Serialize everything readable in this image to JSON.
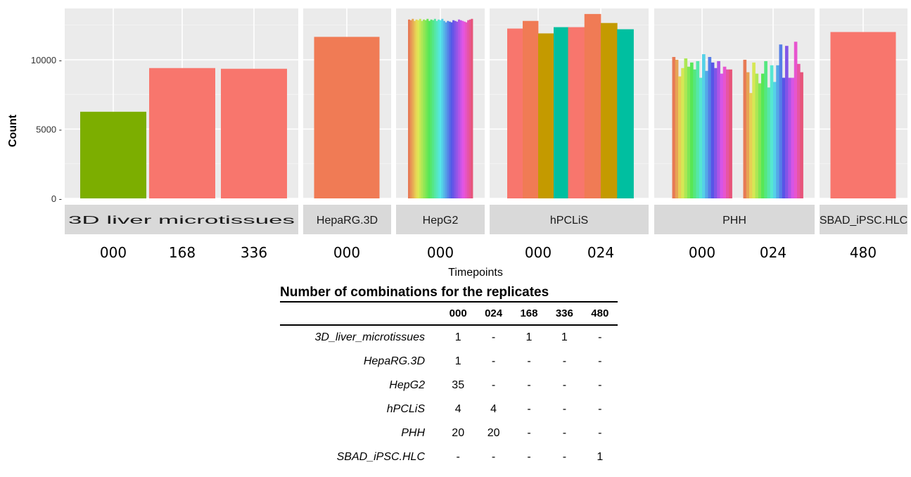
{
  "chart_data": {
    "type": "bar",
    "ylabel": "Count",
    "xlabel": "Timepoints",
    "ylim": [
      0,
      13700
    ],
    "yticks": [
      0,
      5000,
      10000
    ],
    "ytick_labels": [
      "0 -",
      "5000 -",
      "10000 -"
    ],
    "grid": true,
    "panels": [
      {
        "name": "3D liver microtissues",
        "groups": [
          {
            "label": "000",
            "values": [
              6250
            ],
            "colors": [
              "#7cae00"
            ]
          },
          {
            "label": "168",
            "values": [
              9400
            ],
            "colors": [
              "#f8766d"
            ]
          },
          {
            "label": "336",
            "values": [
              9350
            ],
            "colors": [
              "#f8766d"
            ]
          }
        ]
      },
      {
        "name": "HepaRG.3D",
        "groups": [
          {
            "label": "000",
            "values": [
              11650
            ],
            "colors": [
              "#f07b55"
            ]
          }
        ]
      },
      {
        "name": "HepG2",
        "groups": [
          {
            "label": "000",
            "values": [
              12900,
              12850,
              12950,
              12800,
              12900,
              12850,
              12950,
              12800,
              12900,
              12850,
              12950,
              12800,
              12900,
              12850,
              12950,
              12800,
              12900,
              12850,
              12950,
              12800,
              12700,
              12800,
              12750,
              12700,
              12850,
              12800,
              12750,
              12900,
              12850,
              12800,
              12750,
              12700,
              12850,
              12900,
              12950
            ],
            "colors": [
              "rainbow"
            ]
          }
        ]
      },
      {
        "name": "hPCLiS",
        "groups": [
          {
            "label": "000",
            "values": [
              12250,
              12800,
              11900,
              12350
            ],
            "colors": [
              "#f8766d",
              "#f07b55",
              "#c49a00",
              "#00bfa0"
            ]
          },
          {
            "label": "024",
            "values": [
              12350,
              13300,
              12650,
              12200
            ],
            "colors": [
              "#f8766d",
              "#f07b55",
              "#c49a00",
              "#00bfa0"
            ]
          }
        ]
      },
      {
        "name": "PHH",
        "groups": [
          {
            "label": "000",
            "values": [
              10200,
              10000,
              8800,
              9400,
              10100,
              9500,
              9800,
              9300,
              9900,
              8700,
              10400,
              9200,
              10200,
              9800,
              9400,
              9900,
              9000,
              9500,
              9300,
              9300
            ],
            "colors": [
              "rainbow"
            ]
          },
          {
            "label": "024",
            "values": [
              10000,
              9100,
              7600,
              9800,
              9000,
              8300,
              9000,
              9900,
              8000,
              9600,
              8400,
              9600,
              11100,
              8700,
              11000,
              8700,
              8700,
              11300,
              9700,
              9100
            ],
            "colors": [
              "rainbow"
            ]
          }
        ]
      },
      {
        "name": "SBAD_iPSC.HLC",
        "groups": [
          {
            "label": "480",
            "values": [
              12000
            ],
            "colors": [
              "#f8766d"
            ]
          }
        ]
      }
    ]
  },
  "table": {
    "title": "Number of combinations for the replicates",
    "columns": [
      "000",
      "024",
      "168",
      "336",
      "480"
    ],
    "rows": [
      {
        "name": "3D_liver_microtissues",
        "cells": [
          "1",
          "-",
          "1",
          "1",
          "-"
        ]
      },
      {
        "name": "HepaRG.3D",
        "cells": [
          "1",
          "-",
          "-",
          "-",
          "-"
        ]
      },
      {
        "name": "HepG2",
        "cells": [
          "35",
          "-",
          "-",
          "-",
          "-"
        ]
      },
      {
        "name": "hPCLiS",
        "cells": [
          "4",
          "4",
          "-",
          "-",
          "-"
        ]
      },
      {
        "name": "PHH",
        "cells": [
          "20",
          "20",
          "-",
          "-",
          "-"
        ]
      },
      {
        "name": "SBAD_iPSC.HLC",
        "cells": [
          "-",
          "-",
          "-",
          "-",
          "1"
        ]
      }
    ]
  }
}
